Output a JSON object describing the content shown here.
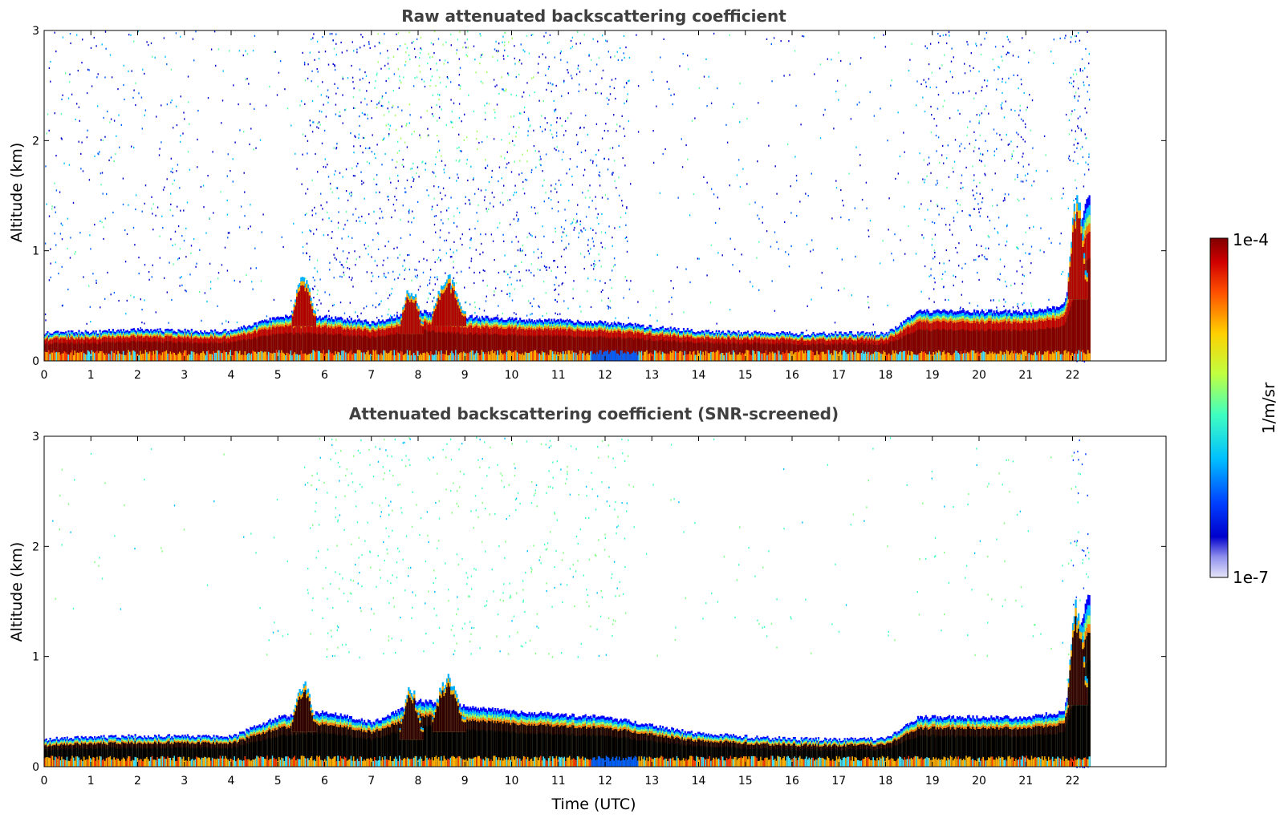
{
  "chart_data": [
    {
      "type": "heatmap",
      "title": "Raw attenuated backscattering coefficient",
      "xlabel": "",
      "ylabel": "Altitude (km)",
      "xlim": [
        0,
        24
      ],
      "ylim": [
        0,
        3
      ],
      "x_ticks": [
        "0",
        "1",
        "2",
        "3",
        "4",
        "5",
        "6",
        "7",
        "8",
        "9",
        "10",
        "11",
        "12",
        "13",
        "14",
        "15",
        "16",
        "17",
        "18",
        "19",
        "20",
        "21",
        "22"
      ],
      "y_ticks": [
        "0",
        "1",
        "2",
        "3"
      ],
      "data_end_hour": 22.35,
      "boundary_layer_top_km": [
        {
          "x": 0,
          "y": 0.25
        },
        {
          "x": 2,
          "y": 0.28
        },
        {
          "x": 4,
          "y": 0.27
        },
        {
          "x": 5,
          "y": 0.4
        },
        {
          "x": 6,
          "y": 0.4
        },
        {
          "x": 7,
          "y": 0.35
        },
        {
          "x": 8,
          "y": 0.45
        },
        {
          "x": 9,
          "y": 0.4
        },
        {
          "x": 10,
          "y": 0.38
        },
        {
          "x": 12,
          "y": 0.35
        },
        {
          "x": 14,
          "y": 0.27
        },
        {
          "x": 16,
          "y": 0.25
        },
        {
          "x": 18,
          "y": 0.25
        },
        {
          "x": 18.7,
          "y": 0.45
        },
        {
          "x": 21,
          "y": 0.45
        },
        {
          "x": 21.8,
          "y": 0.5
        },
        {
          "x": 22.3,
          "y": 1.5
        }
      ],
      "elevated_features": [
        {
          "x_range": [
            5.3,
            5.8
          ],
          "y_range": [
            0.45,
            0.8
          ]
        },
        {
          "x_range": [
            7.6,
            8.1
          ],
          "y_range": [
            0.35,
            0.7
          ]
        },
        {
          "x_range": [
            8.3,
            9.0
          ],
          "y_range": [
            0.45,
            0.8
          ]
        },
        {
          "x_range": [
            21.9,
            22.3
          ],
          "y_range": [
            0.8,
            1.55
          ]
        }
      ],
      "noise": "dense scattered speckle above 1 km, especially 6–12 UTC and 19–21 UTC"
    },
    {
      "type": "heatmap",
      "title": "Attenuated backscattering coefficient (SNR-screened)",
      "xlabel": "Time (UTC)",
      "ylabel": "Altitude (km)",
      "xlim": [
        0,
        24
      ],
      "ylim": [
        0,
        3
      ],
      "x_ticks": [
        "0",
        "1",
        "2",
        "3",
        "4",
        "5",
        "6",
        "7",
        "8",
        "9",
        "10",
        "11",
        "12",
        "13",
        "14",
        "15",
        "16",
        "17",
        "18",
        "19",
        "20",
        "21",
        "22"
      ],
      "y_ticks": [
        "0",
        "1",
        "2",
        "3"
      ],
      "data_end_hour": 22.35,
      "boundary_layer_top_km": [
        {
          "x": 0,
          "y": 0.25
        },
        {
          "x": 2,
          "y": 0.28
        },
        {
          "x": 4,
          "y": 0.27
        },
        {
          "x": 5,
          "y": 0.45
        },
        {
          "x": 6,
          "y": 0.5
        },
        {
          "x": 7,
          "y": 0.4
        },
        {
          "x": 8,
          "y": 0.6
        },
        {
          "x": 9,
          "y": 0.55
        },
        {
          "x": 10,
          "y": 0.5
        },
        {
          "x": 12,
          "y": 0.45
        },
        {
          "x": 14,
          "y": 0.3
        },
        {
          "x": 16,
          "y": 0.25
        },
        {
          "x": 18,
          "y": 0.25
        },
        {
          "x": 18.7,
          "y": 0.45
        },
        {
          "x": 21,
          "y": 0.45
        },
        {
          "x": 21.8,
          "y": 0.5
        },
        {
          "x": 22.3,
          "y": 1.55
        }
      ],
      "elevated_features": [
        {
          "x_range": [
            5.3,
            5.8
          ],
          "y_range": [
            0.45,
            0.8
          ]
        },
        {
          "x_range": [
            7.6,
            8.1
          ],
          "y_range": [
            0.35,
            0.75
          ]
        },
        {
          "x_range": [
            8.3,
            9.0
          ],
          "y_range": [
            0.45,
            0.85
          ]
        },
        {
          "x_range": [
            21.9,
            22.3
          ],
          "y_range": [
            0.8,
            1.55
          ]
        }
      ],
      "noise": "sparse green/cyan speckle above 1 km, mostly 7–12 UTC"
    }
  ],
  "colorbar": {
    "label": "1/m/sr",
    "min_label": "1e-7",
    "max_label": "1e-4",
    "colormap": "jet",
    "scale": "log",
    "colors": [
      "#e6e6f8",
      "#0000cc",
      "#0040ff",
      "#00c0ff",
      "#40ffc0",
      "#c0ff40",
      "#ffd000",
      "#ff5000",
      "#d00000",
      "#800000"
    ]
  }
}
